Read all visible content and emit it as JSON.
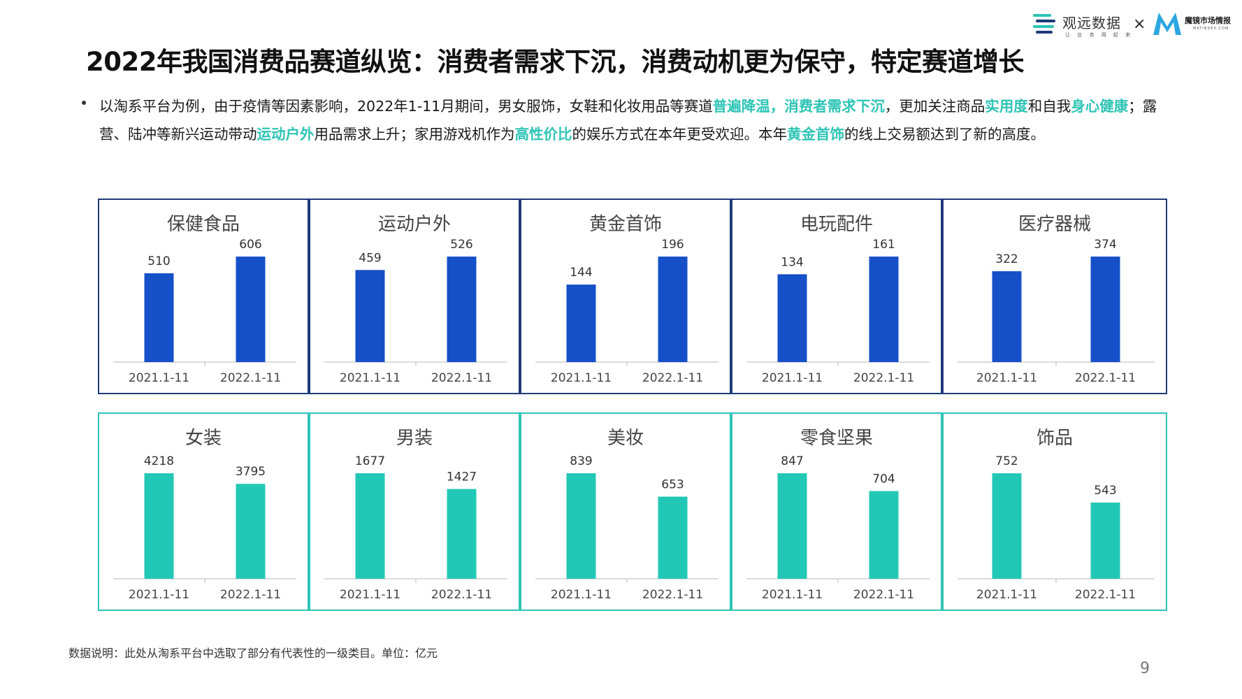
{
  "header": {
    "brand_gy": {
      "name": "观远数据",
      "slogan": "让 业 务 用 起 来"
    },
    "brand_separator": "×",
    "brand_mj": {
      "name": "魔镜市场情报",
      "url": "MKTINDEX.COM"
    }
  },
  "title": "2022年我国消费品赛道纵览：消费者需求下沉，消费动机更为保守，特定赛道增长",
  "intro": {
    "seg1": "以淘系平台为例，由于疫情等因素影响，2022年1-11月期间，男女服饰，女鞋和化妆用品等赛道",
    "hl1": "普遍降温，消费者需求下沉",
    "seg2": "，更加关注商品",
    "hl2": "实用度",
    "seg3": "和自我",
    "hl3": "身心健康",
    "seg4": "；露营、陆冲等新兴运动带动",
    "hl4": "运动户外",
    "seg5": "用品需求上升；家用游戏机作为",
    "hl5": "高性价比",
    "seg6": "的娱乐方式在本年更受欢迎。本年",
    "hl6": "黄金首饰",
    "seg7": "的线上交易额达到了新的高度。"
  },
  "colors": {
    "blue_bar": "#1550c8",
    "teal_bar": "#22c8b6",
    "blue_border": "#1f3a78",
    "teal_border": "#2ec4b6"
  },
  "chart_data": [
    {
      "type": "bar",
      "title": "保健食品",
      "categories": [
        "2021.1-11",
        "2022.1-11"
      ],
      "values": [
        510,
        606
      ],
      "row": "growth"
    },
    {
      "type": "bar",
      "title": "运动户外",
      "categories": [
        "2021.1-11",
        "2022.1-11"
      ],
      "values": [
        459,
        526
      ],
      "row": "growth"
    },
    {
      "type": "bar",
      "title": "黄金首饰",
      "categories": [
        "2021.1-11",
        "2022.1-11"
      ],
      "values": [
        144,
        196
      ],
      "row": "growth"
    },
    {
      "type": "bar",
      "title": "电玩配件",
      "categories": [
        "2021.1-11",
        "2022.1-11"
      ],
      "values": [
        134,
        161
      ],
      "row": "growth"
    },
    {
      "type": "bar",
      "title": "医疗器械",
      "categories": [
        "2021.1-11",
        "2022.1-11"
      ],
      "values": [
        322,
        374
      ],
      "row": "growth"
    },
    {
      "type": "bar",
      "title": "女装",
      "categories": [
        "2021.1-11",
        "2022.1-11"
      ],
      "values": [
        4218,
        3795
      ],
      "row": "decline"
    },
    {
      "type": "bar",
      "title": "男装",
      "categories": [
        "2021.1-11",
        "2022.1-11"
      ],
      "values": [
        1677,
        1427
      ],
      "row": "decline"
    },
    {
      "type": "bar",
      "title": "美妆",
      "categories": [
        "2021.1-11",
        "2022.1-11"
      ],
      "values": [
        839,
        653
      ],
      "row": "decline"
    },
    {
      "type": "bar",
      "title": "零食坚果",
      "categories": [
        "2021.1-11",
        "2022.1-11"
      ],
      "values": [
        847,
        704
      ],
      "row": "decline"
    },
    {
      "type": "bar",
      "title": "饰品",
      "categories": [
        "2021.1-11",
        "2022.1-11"
      ],
      "values": [
        752,
        543
      ],
      "row": "decline"
    }
  ],
  "footnote": "数据说明：此处从淘系平台中选取了部分有代表性的一级类目。单位：亿元",
  "page_number": "9"
}
